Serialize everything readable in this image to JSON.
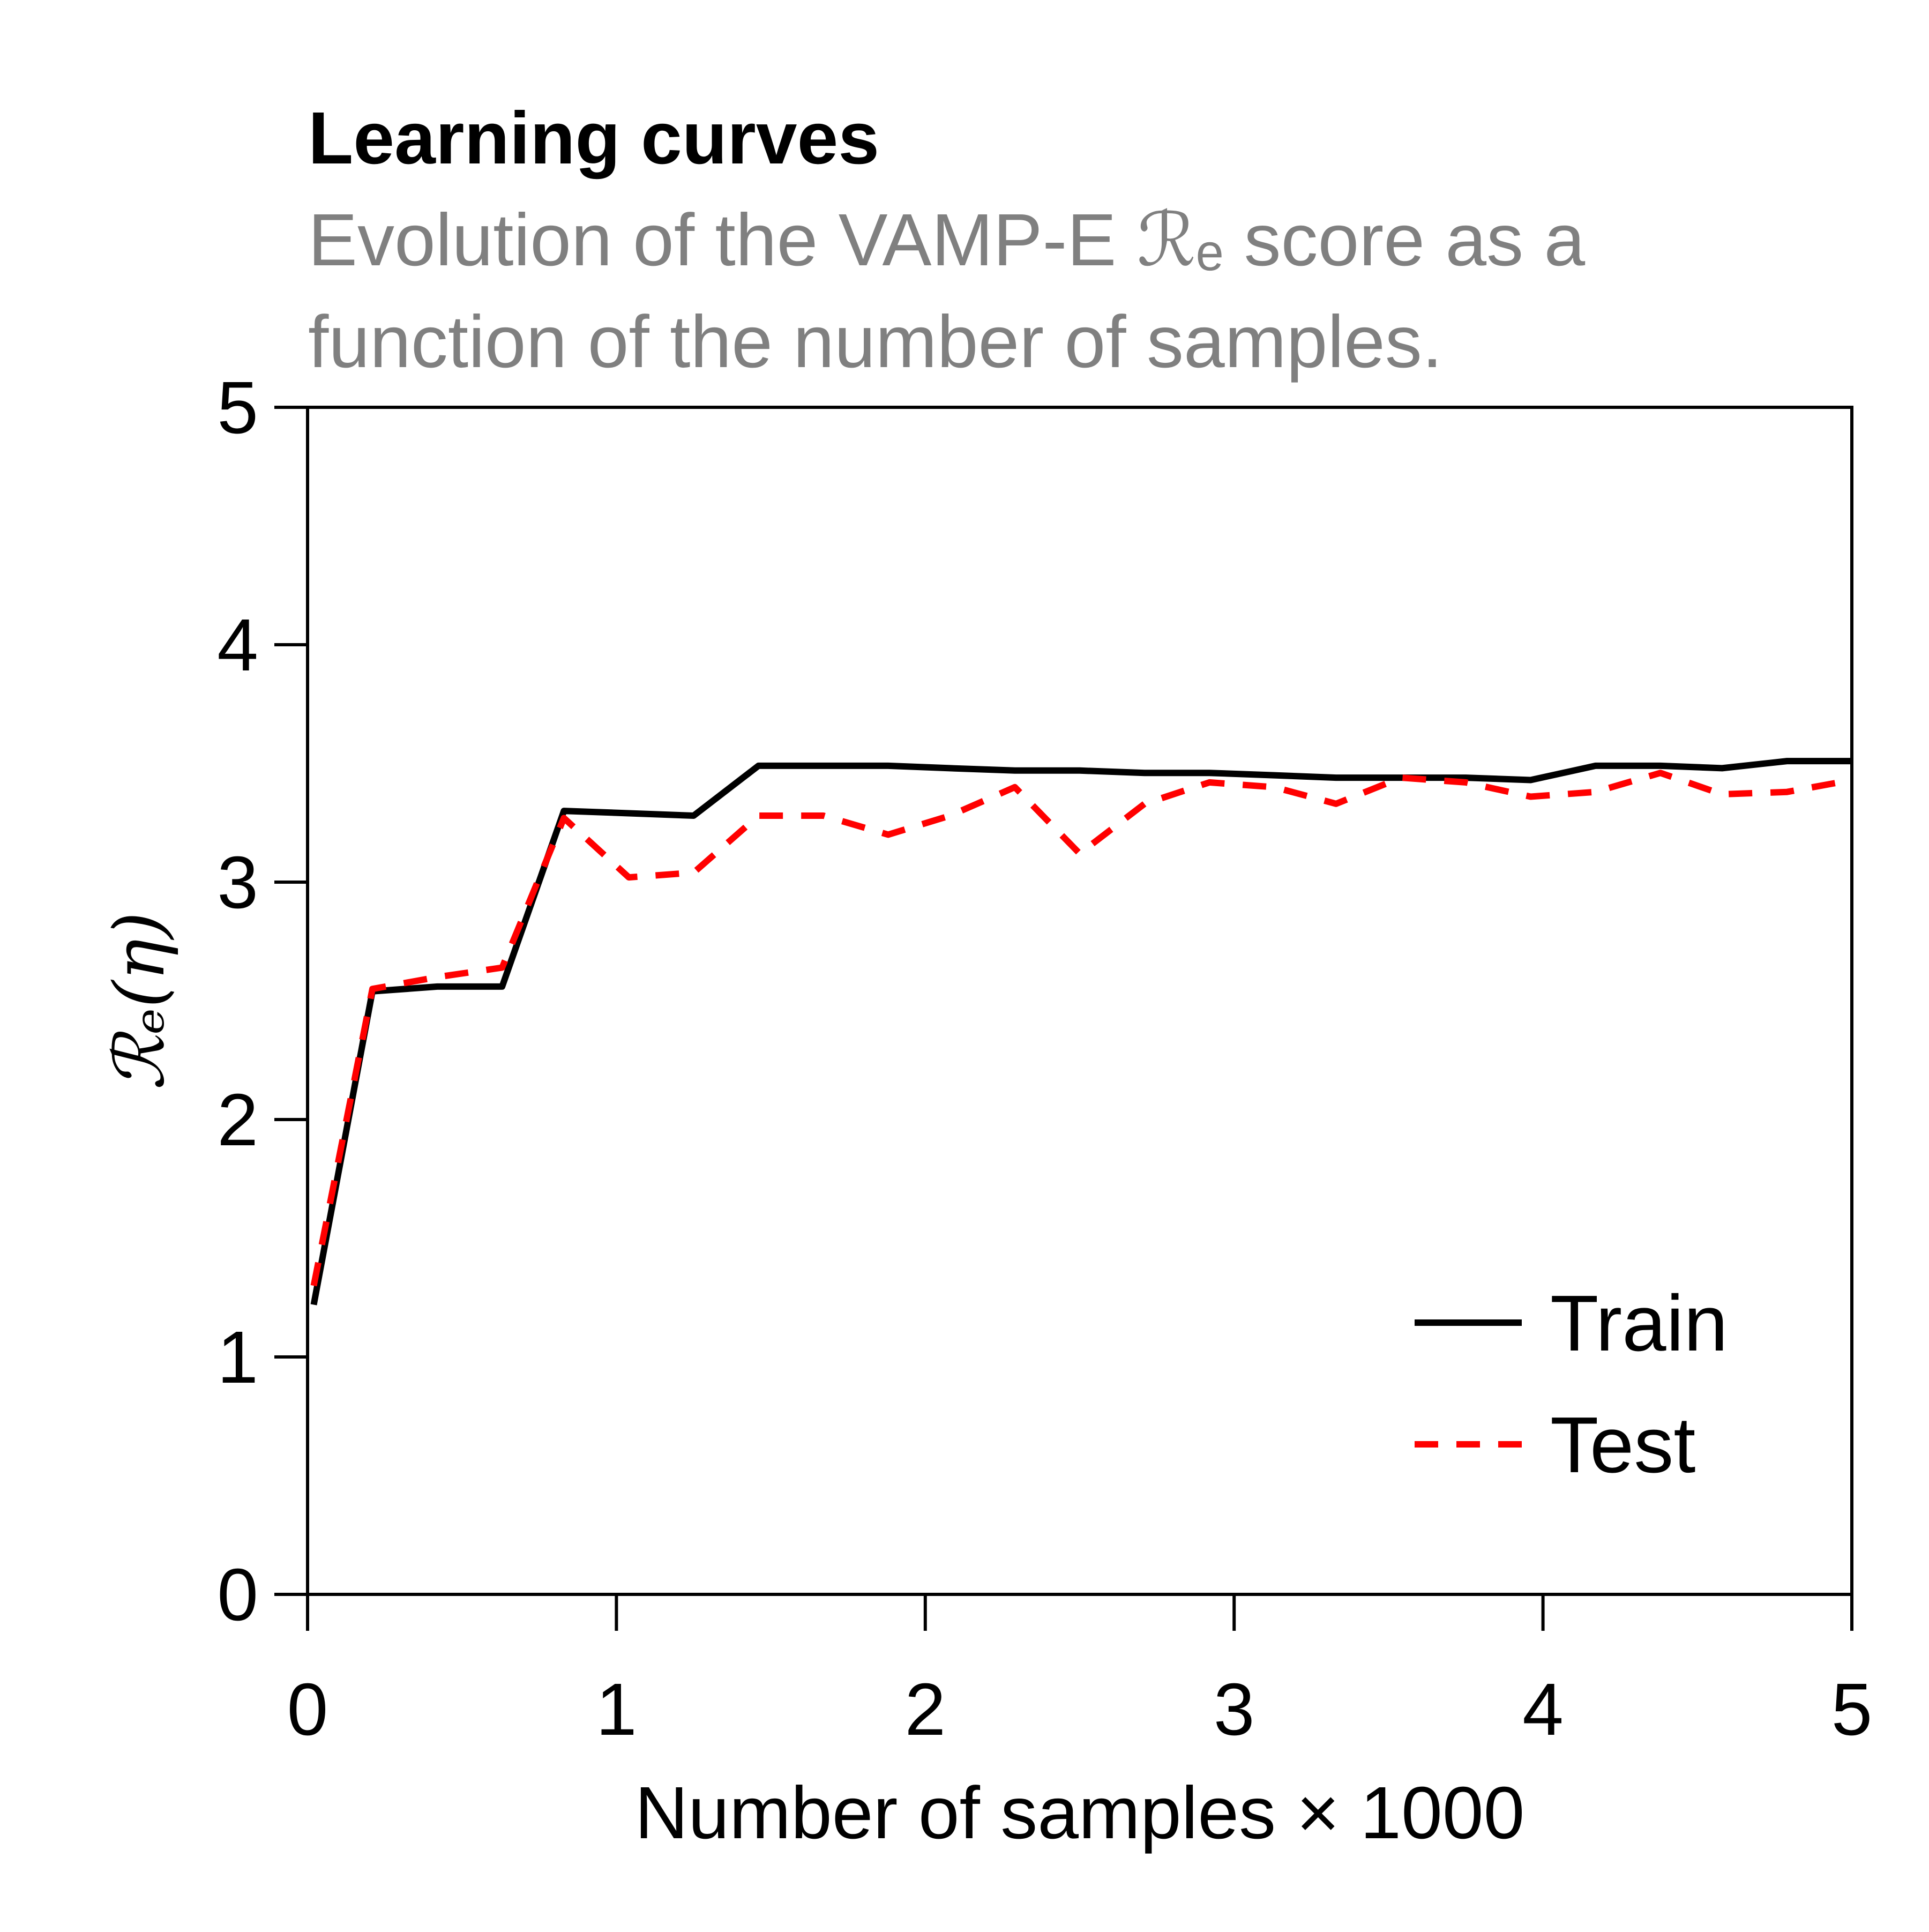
{
  "chart_data": {
    "type": "line",
    "title": "Learning curves",
    "subtitle_lines": [
      "Evolution of the VAMP-E ℛₑ score as a",
      "function of the number of samples."
    ],
    "xlabel": "Number of samples × 1000",
    "ylabel": "ℛₑ(η)",
    "xlim": [
      0,
      5
    ],
    "ylim": [
      0,
      5
    ],
    "xticks": [
      "0",
      "1",
      "2",
      "3",
      "4",
      "5"
    ],
    "yticks": [
      "0",
      "1",
      "2",
      "3",
      "4",
      "5"
    ],
    "grid": false,
    "legend_position": "bottom-right",
    "series": [
      {
        "name": "Train",
        "color": "#000000",
        "style": "solid",
        "x": [
          0.02,
          0.21,
          0.42,
          0.63,
          0.83,
          1.04,
          1.25,
          1.46,
          1.67,
          1.88,
          2.08,
          2.29,
          2.5,
          2.71,
          2.92,
          3.13,
          3.33,
          3.54,
          3.75,
          3.96,
          4.17,
          4.38,
          4.58,
          4.79,
          5.0
        ],
        "y": [
          1.22,
          2.54,
          2.56,
          2.56,
          3.3,
          3.29,
          3.28,
          3.49,
          3.49,
          3.49,
          3.48,
          3.47,
          3.47,
          3.46,
          3.46,
          3.45,
          3.44,
          3.44,
          3.44,
          3.43,
          3.49,
          3.49,
          3.48,
          3.51,
          3.51
        ]
      },
      {
        "name": "Test",
        "color": "#ff0000",
        "style": "dashed",
        "x": [
          0.02,
          0.21,
          0.42,
          0.63,
          0.83,
          1.04,
          1.25,
          1.46,
          1.67,
          1.88,
          2.08,
          2.29,
          2.5,
          2.71,
          2.92,
          3.13,
          3.33,
          3.54,
          3.75,
          3.96,
          4.17,
          4.38,
          4.58,
          4.79,
          5.0
        ],
        "y": [
          1.3,
          2.55,
          2.6,
          2.64,
          3.27,
          3.02,
          3.04,
          3.28,
          3.28,
          3.2,
          3.28,
          3.4,
          3.12,
          3.33,
          3.42,
          3.4,
          3.33,
          3.44,
          3.42,
          3.36,
          3.38,
          3.46,
          3.37,
          3.38,
          3.43
        ]
      }
    ]
  }
}
